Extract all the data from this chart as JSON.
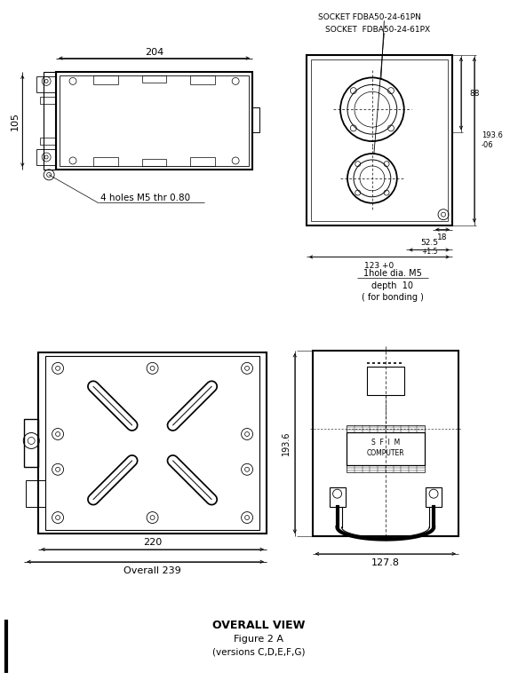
{
  "title": "OVERALL VIEW",
  "subtitle": "Figure 2 A",
  "subtitle2": "(versions C,D,E,F,G)",
  "bg_color": "#ffffff",
  "socket_label1": "SOCKET FDBA50-24-61PN",
  "socket_label2": "SOCKET  FDBA50-24-61PX",
  "dim_204": "204",
  "dim_105": "105",
  "dim_88": "88",
  "dim_193_6": "193.6",
  "dim_06": "-06",
  "dim_18": "18",
  "dim_52_5": "52.5",
  "dim_plus_1_5": "+1.5",
  "dim_123": "123 +0",
  "dim_220": "220",
  "dim_overall_239": "Overall 239",
  "dim_127_8": "127.8",
  "note_holes": "4 holes M5 thr 0.80",
  "note_1hole": "1hole dia. M5",
  "note_depth": "depth  10",
  "note_bonding": "( for bonding )"
}
